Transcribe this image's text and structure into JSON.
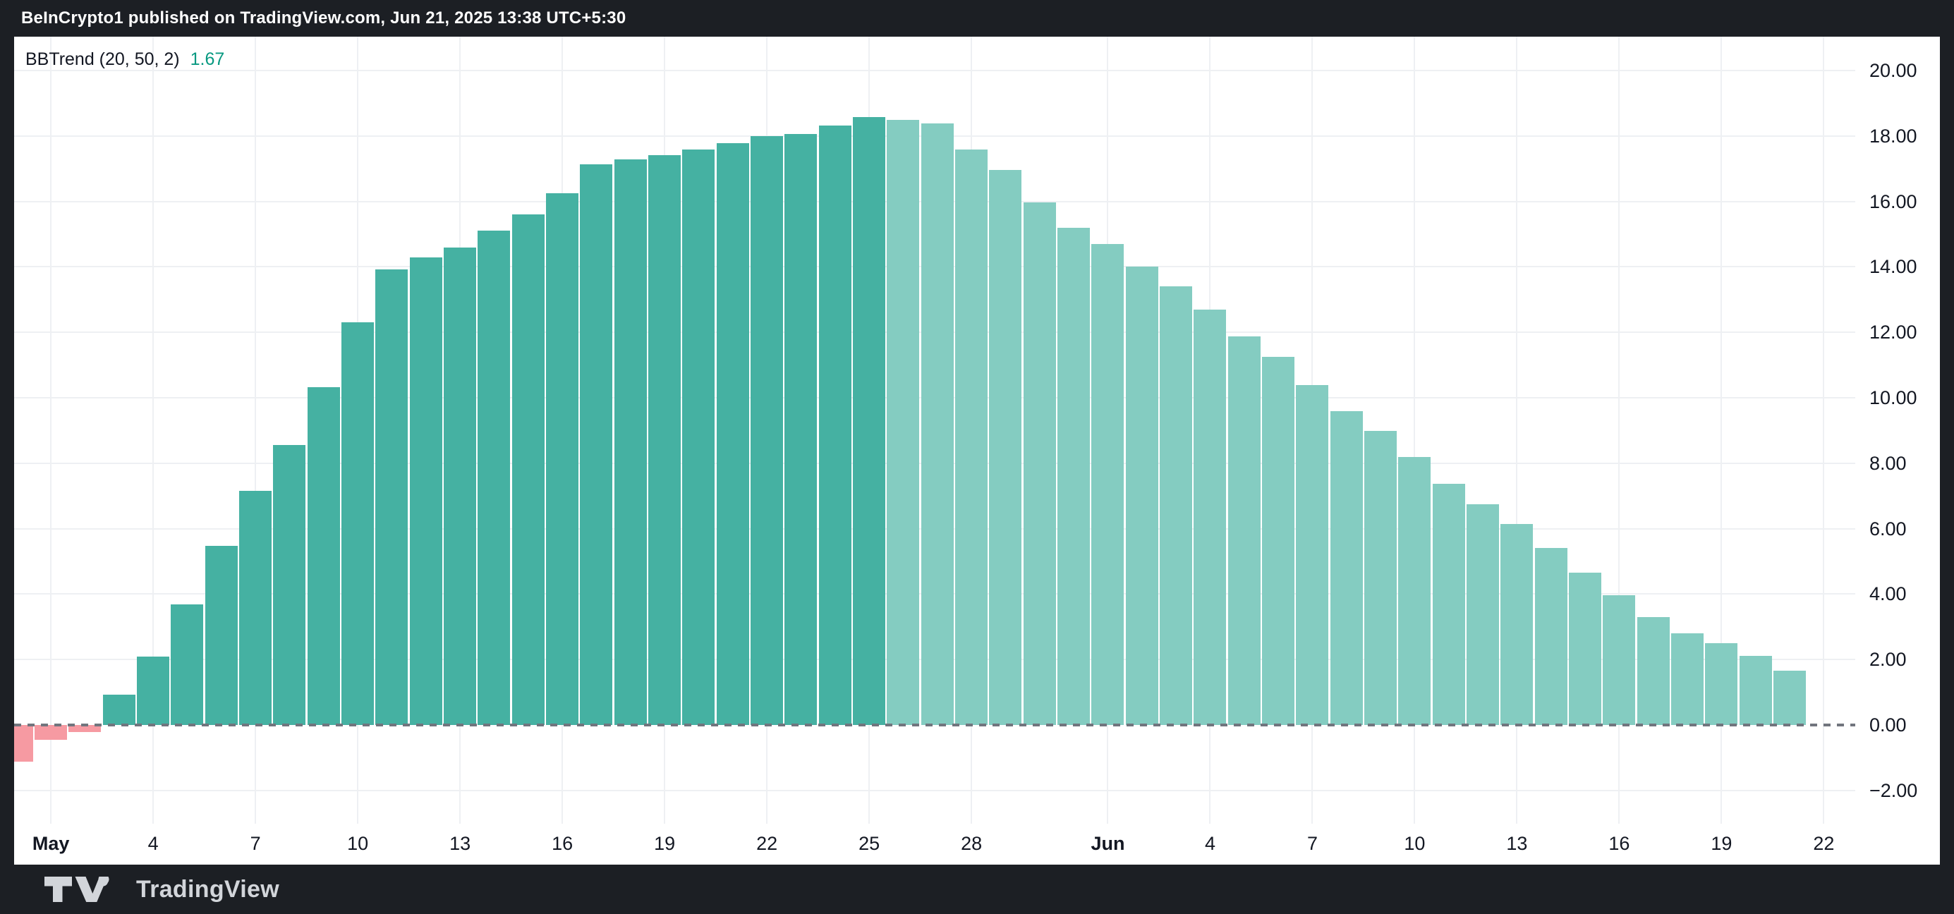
{
  "header": {
    "title": "BeInCrypto1 published on TradingView.com, Jun 21, 2025 13:38 UTC+5:30"
  },
  "legend": {
    "title": "BBTrend (20, 50, 2)",
    "value": "1.67"
  },
  "footer": {
    "brand": "TradingView",
    "logo_icon": "tradingview-logo-icon"
  },
  "colors": {
    "frame": "#1c1f24",
    "plot_background": "#ffffff",
    "grid": "#eef0f3",
    "axis_text": "#131722",
    "legend_value": "#089981",
    "zero_line": "#71757e",
    "rising_bar": "#45b1a2",
    "falling_bar": "#84ccc1",
    "negative_bar": "#f69aa2"
  },
  "chart_data": {
    "type": "bar",
    "title": "BBTrend (20, 50, 2)",
    "current_value": 1.67,
    "ylabel": "",
    "xlabel": "",
    "ylim": [
      -3.3,
      20.6
    ],
    "grid": true,
    "zero_line": "dashed",
    "legend_position": "top-left",
    "categories": [
      "Apr 30",
      "May 1",
      "May 2",
      "May 3",
      "May 4",
      "May 5",
      "May 6",
      "May 7",
      "May 8",
      "May 9",
      "May 10",
      "May 11",
      "May 12",
      "May 13",
      "May 14",
      "May 15",
      "May 16",
      "May 17",
      "May 18",
      "May 19",
      "May 20",
      "May 21",
      "May 22",
      "May 23",
      "May 24",
      "May 25",
      "May 26",
      "May 27",
      "May 28",
      "May 29",
      "May 30",
      "May 31",
      "Jun 1",
      "Jun 2",
      "Jun 3",
      "Jun 4",
      "Jun 5",
      "Jun 6",
      "Jun 7",
      "Jun 8",
      "Jun 9",
      "Jun 10",
      "Jun 11",
      "Jun 12",
      "Jun 13",
      "Jun 14",
      "Jun 15",
      "Jun 16",
      "Jun 17",
      "Jun 18",
      "Jun 19",
      "Jun 20",
      "Jun 21"
    ],
    "values": [
      -1.12,
      -0.46,
      -0.21,
      0.93,
      2.09,
      3.69,
      5.47,
      7.16,
      8.56,
      10.32,
      12.31,
      13.92,
      14.29,
      14.58,
      15.11,
      15.6,
      16.24,
      17.13,
      17.29,
      17.41,
      17.58,
      17.79,
      17.99,
      18.07,
      18.32,
      18.58,
      18.49,
      18.39,
      17.59,
      16.96,
      15.97,
      15.2,
      14.7,
      14.0,
      13.41,
      12.69,
      11.88,
      11.26,
      10.39,
      9.6,
      8.99,
      8.19,
      7.36,
      6.75,
      6.15,
      5.41,
      4.65,
      3.97,
      3.3,
      2.81,
      2.5,
      2.11,
      1.67
    ],
    "falling_start_index": 26,
    "y_ticks": [
      {
        "label": "20.00",
        "value": 20
      },
      {
        "label": "18.00",
        "value": 18
      },
      {
        "label": "16.00",
        "value": 16
      },
      {
        "label": "14.00",
        "value": 14
      },
      {
        "label": "12.00",
        "value": 12
      },
      {
        "label": "10.00",
        "value": 10
      },
      {
        "label": "8.00",
        "value": 8
      },
      {
        "label": "6.00",
        "value": 6
      },
      {
        "label": "4.00",
        "value": 4
      },
      {
        "label": "2.00",
        "value": 2
      },
      {
        "label": "0.00",
        "value": 0
      },
      {
        "label": "−2.00",
        "value": -2
      }
    ],
    "x_ticks": [
      {
        "label": "May",
        "index": 1,
        "bold": true
      },
      {
        "label": "4",
        "index": 4
      },
      {
        "label": "7",
        "index": 7
      },
      {
        "label": "10",
        "index": 10
      },
      {
        "label": "13",
        "index": 13
      },
      {
        "label": "16",
        "index": 16
      },
      {
        "label": "19",
        "index": 19
      },
      {
        "label": "22",
        "index": 22
      },
      {
        "label": "25",
        "index": 25
      },
      {
        "label": "28",
        "index": 28
      },
      {
        "label": "Jun",
        "index": 32,
        "bold": true
      },
      {
        "label": "4",
        "index": 35
      },
      {
        "label": "7",
        "index": 38
      },
      {
        "label": "10",
        "index": 41
      },
      {
        "label": "13",
        "index": 44
      },
      {
        "label": "16",
        "index": 47
      },
      {
        "label": "19",
        "index": 50
      },
      {
        "label": "22",
        "index": 53
      }
    ]
  }
}
